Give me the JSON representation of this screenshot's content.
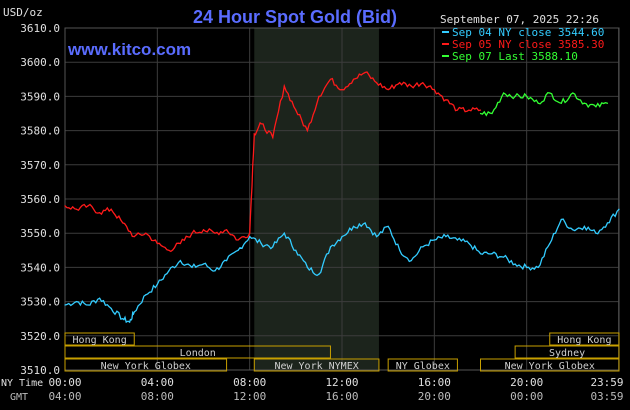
{
  "chart_data": {
    "type": "line",
    "title": "24 Hour Spot Gold (Bid)",
    "site": "www.kitco.com",
    "timestamp": "September 07, 2025 22:26",
    "ylabel": "USD/oz",
    "ylim": [
      3510.0,
      3610.0
    ],
    "yticks": [
      "3610.0",
      "3600.0",
      "3590.0",
      "3580.0",
      "3570.0",
      "3560.0",
      "3550.0",
      "3540.0",
      "3530.0",
      "3520.0",
      "3510.0"
    ],
    "x_row_labels": {
      "ny": "NY Time",
      "gmt": "GMT"
    },
    "xticks_ny": [
      "00:00",
      "04:00",
      "08:00",
      "12:00",
      "16:00",
      "20:00",
      "23:59"
    ],
    "xticks_gmt": [
      "04:00",
      "08:00",
      "12:00",
      "16:00",
      "20:00",
      "00:00",
      "03:59"
    ],
    "grid": true,
    "legend_position": "top-right",
    "colors": {
      "background": "#000000",
      "grid": "#3c3c3c",
      "title": "#5a6cff",
      "shade": "#1c241c",
      "session_bar": "#c8a000",
      "session_text": "#d0d0d0",
      "axis_text": "#e0e0e0"
    },
    "series": [
      {
        "name": "Sep 04 NY close 3544.60",
        "color": "#33ccff",
        "x": [
          0,
          0.5,
          1,
          1.5,
          2,
          2.5,
          2.8,
          3,
          3.5,
          4,
          4.5,
          5,
          5.5,
          6,
          6.5,
          7,
          7.5,
          8,
          8.5,
          9,
          9.5,
          10,
          10.5,
          11,
          11.5,
          12,
          12.5,
          13,
          13.5,
          14,
          14.5,
          15,
          15.5,
          16,
          16.5,
          17,
          17.5,
          18,
          18.5,
          19,
          19.5,
          20,
          20.5,
          21,
          21.5,
          22,
          22.5,
          23,
          23.5,
          24
        ],
        "y": [
          3529,
          3530,
          3529,
          3531,
          3528,
          3525,
          3524,
          3527,
          3532,
          3535,
          3539,
          3542,
          3540,
          3541,
          3539,
          3542,
          3545,
          3549,
          3547,
          3546,
          3550,
          3545,
          3540,
          3538,
          3546,
          3549,
          3552,
          3553,
          3549,
          3552,
          3545,
          3542,
          3546,
          3548,
          3549,
          3548,
          3547,
          3544,
          3544,
          3543,
          3541,
          3540,
          3540,
          3547,
          3554,
          3551,
          3552,
          3550,
          3553,
          3557
        ]
      },
      {
        "name": "Sep 05 NY close 3585.30",
        "color": "#ff1a1a",
        "x": [
          0,
          0.5,
          1,
          1.5,
          2,
          2.5,
          3,
          3.5,
          4,
          4.5,
          5,
          5.5,
          6,
          6.5,
          7,
          7.5,
          8,
          8.2,
          8.5,
          9,
          9.5,
          10,
          10.5,
          11,
          11.5,
          12,
          12.5,
          13,
          13.5,
          14,
          14.5,
          15,
          15.5,
          16,
          16.5,
          17,
          17.5,
          18
        ],
        "y": [
          3558,
          3557,
          3558,
          3556,
          3557,
          3553,
          3549,
          3550,
          3547,
          3545,
          3547,
          3550,
          3551,
          3550,
          3551,
          3548,
          3550,
          3579,
          3582,
          3578,
          3593,
          3586,
          3580,
          3590,
          3595,
          3592,
          3595,
          3597,
          3594,
          3592,
          3594,
          3593,
          3594,
          3592,
          3589,
          3586,
          3586,
          3586
        ]
      },
      {
        "name": "Sep 07 Last 3588.10",
        "color": "#33ff33",
        "x": [
          18,
          18.5,
          19,
          19.5,
          20,
          20.5,
          21,
          21.5,
          22,
          22.5,
          23,
          23.5
        ],
        "y": [
          3585,
          3585,
          3591,
          3590,
          3590,
          3588,
          3591,
          3588,
          3591,
          3588,
          3587,
          3588
        ]
      }
    ],
    "sessions": [
      {
        "label": "Hong Kong",
        "start": 0,
        "end": 3,
        "row": 0
      },
      {
        "label": "London",
        "start": 0,
        "end": 11.5,
        "row": 1
      },
      {
        "label": "New York Globex",
        "start": 0,
        "end": 7,
        "row": 2
      },
      {
        "label": "New York NYMEX",
        "start": 8.2,
        "end": 13.6,
        "row": 2
      },
      {
        "label": "NY Globex",
        "start": 14,
        "end": 17,
        "row": 2
      },
      {
        "label": "Hong Kong",
        "start": 21,
        "end": 24,
        "row": 0
      },
      {
        "label": "Sydney",
        "start": 19.5,
        "end": 24,
        "row": 1
      },
      {
        "label": "New York Globex",
        "start": 18,
        "end": 24,
        "row": 2
      }
    ]
  }
}
